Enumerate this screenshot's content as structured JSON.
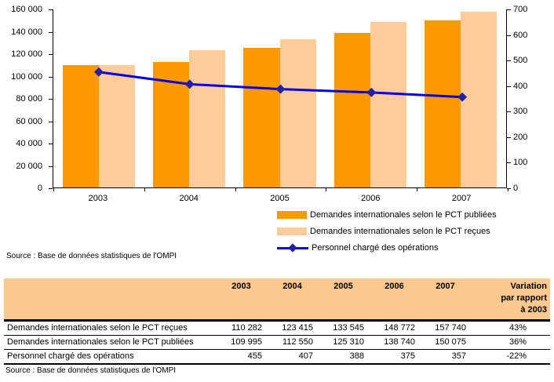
{
  "chart_data": {
    "type": "bar+line",
    "categories": [
      "2003",
      "2004",
      "2005",
      "2006",
      "2007"
    ],
    "series": [
      {
        "name": "Demandes internationales selon le PCT publiées",
        "type": "bar",
        "axis": "left",
        "color": "#FF9900",
        "values": [
          109995,
          112550,
          125310,
          138740,
          150075
        ]
      },
      {
        "name": "Demandes internationales selon le PCT reçues",
        "type": "bar",
        "axis": "left",
        "color": "#FFCC99",
        "values": [
          110282,
          123415,
          133545,
          148772,
          157740
        ]
      },
      {
        "name": "Personnel chargé des opérations",
        "type": "line",
        "axis": "right",
        "color": "#0000E6",
        "marker_color": "#2121A8",
        "values": [
          455,
          407,
          388,
          375,
          357
        ]
      }
    ],
    "left_axis": {
      "min": 0,
      "max": 160000,
      "step": 20000,
      "tick_labels": [
        "160 000",
        "140 000",
        "120 000",
        "100 000",
        "80 000",
        "60 000",
        "40 000",
        "20 000",
        "0"
      ]
    },
    "right_axis": {
      "min": 0,
      "max": 700,
      "step": 100,
      "tick_labels": [
        "700",
        "600",
        "500",
        "400",
        "300",
        "200",
        "100",
        "0"
      ]
    },
    "grid": false,
    "legend_position": "bottom-right"
  },
  "source_chart": "Source : Base de données statistiques de l'OMPI",
  "table": {
    "header": {
      "years": [
        "2003",
        "2004",
        "2005",
        "2006",
        "2007"
      ],
      "variation_lines": [
        "Variation",
        "par rapport",
        "à 2003"
      ],
      "header_bg": "#FBC890"
    },
    "rows": [
      {
        "label": "Demandes internationales selon le PCT reçues",
        "values": [
          "110 282",
          "123 415",
          "133 545",
          "148 772",
          "157 740"
        ],
        "variation": "43%"
      },
      {
        "label": "Demandes internationales selon le PCT publiées",
        "values": [
          "109 995",
          "112 550",
          "125 310",
          "138 740",
          "150 075"
        ],
        "variation": "36%"
      },
      {
        "label": "Personnel chargé des opérations",
        "values": [
          "455",
          "407",
          "388",
          "375",
          "357"
        ],
        "variation": "-22%"
      }
    ],
    "source": "Source : Base de données statistiques de l'OMPI"
  }
}
